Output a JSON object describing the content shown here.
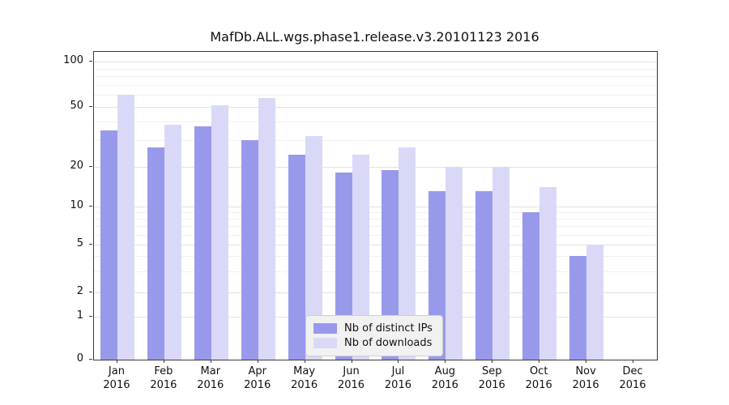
{
  "chart_data": {
    "type": "bar",
    "title": "MafDb.ALL.wgs.phase1.release.v3.20101123 2016",
    "categories": [
      [
        "Jan",
        "2016"
      ],
      [
        "Feb",
        "2016"
      ],
      [
        "Mar",
        "2016"
      ],
      [
        "Apr",
        "2016"
      ],
      [
        "May",
        "2016"
      ],
      [
        "Jun",
        "2016"
      ],
      [
        "Jul",
        "2016"
      ],
      [
        "Aug",
        "2016"
      ],
      [
        "Sep",
        "2016"
      ],
      [
        "Oct",
        "2016"
      ],
      [
        "Nov",
        "2016"
      ],
      [
        "Dec",
        "2016"
      ]
    ],
    "series": [
      {
        "name": "Nb of distinct IPs",
        "color": "#9999ec",
        "values": [
          35,
          27,
          37,
          30,
          24,
          18,
          19,
          13,
          13,
          9,
          4,
          0
        ]
      },
      {
        "name": "Nb of downloads",
        "color": "#d9d9f7",
        "values": [
          60,
          38,
          51,
          57,
          32,
          24,
          27,
          20,
          20,
          14,
          5,
          0
        ]
      }
    ],
    "yticks": [
      0,
      1,
      2,
      5,
      10,
      20,
      50,
      100
    ],
    "ytick_labels": [
      "0",
      "1",
      "2",
      "5",
      "10",
      "20",
      "50",
      "100"
    ],
    "minor_yticks": [
      3,
      4,
      6,
      7,
      8,
      9,
      30,
      40,
      60,
      70,
      80,
      90
    ],
    "y_scale": "log (zero at baseline)",
    "ylim": [
      0,
      110
    ],
    "grid": true,
    "legend": {
      "position": "lower center",
      "labels": [
        "Nb of distinct IPs",
        "Nb of downloads"
      ]
    },
    "colors": {
      "distinct_ips": "#9999ec",
      "downloads": "#d9d9f7",
      "grid_major": "#e2e2e2",
      "grid_minor": "#f1f1f1",
      "legend_bg": "#f1f1f1"
    }
  }
}
